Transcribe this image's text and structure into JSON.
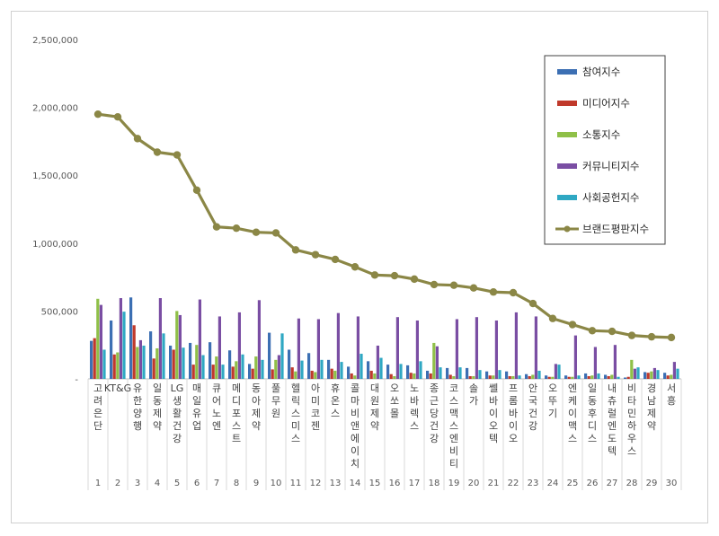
{
  "chart_data": {
    "type": "bar",
    "categories": [
      "고려은단",
      "KT&G",
      "유한양행",
      "일동제약",
      "LG생활건강",
      "매일유업",
      "큐어노엔",
      "메디포스트",
      "동아제약",
      "풀무원",
      "헬릭스미스",
      "아미코젠",
      "휴온스",
      "콜마비앤에이치",
      "대원제약",
      "오쏘몰",
      "노바렉스",
      "종근당건강",
      "코스맥스엔비티",
      "솔가",
      "쎌바이오텍",
      "프롬바이오",
      "안국건강",
      "오뚜기",
      "엔케이맥스",
      "일동후디스",
      "내츄럴엔도텍",
      "비타민하우스",
      "경남제약",
      "서흥"
    ],
    "ranks": [
      "1",
      "2",
      "3",
      "4",
      "5",
      "6",
      "7",
      "8",
      "9",
      "10",
      "11",
      "12",
      "13",
      "14",
      "15",
      "16",
      "17",
      "18",
      "19",
      "20",
      "21",
      "22",
      "23",
      "24",
      "25",
      "26",
      "27",
      "28",
      "29",
      "30"
    ],
    "series": [
      {
        "name": "참여지수",
        "type": "bar",
        "color": "#3c6fb3",
        "values": [
          280000,
          430000,
          600000,
          350000,
          245000,
          265000,
          270000,
          210000,
          110000,
          340000,
          215000,
          190000,
          140000,
          90000,
          130000,
          105000,
          100000,
          60000,
          80000,
          80000,
          55000,
          55000,
          35000,
          25000,
          25000,
          40000,
          30000,
          10000,
          50000,
          45000
        ]
      },
      {
        "name": "미디어지수",
        "type": "bar",
        "color": "#c0392b",
        "values": [
          300000,
          180000,
          395000,
          150000,
          215000,
          105000,
          105000,
          90000,
          75000,
          70000,
          85000,
          60000,
          75000,
          40000,
          60000,
          35000,
          45000,
          40000,
          30000,
          20000,
          25000,
          20000,
          20000,
          15000,
          15000,
          20000,
          20000,
          15000,
          45000,
          25000
        ]
      },
      {
        "name": "소통지수",
        "type": "bar",
        "color": "#8fc048",
        "values": [
          590000,
          195000,
          235000,
          225000,
          500000,
          250000,
          165000,
          130000,
          165000,
          140000,
          55000,
          50000,
          60000,
          25000,
          40000,
          20000,
          40000,
          265000,
          20000,
          20000,
          25000,
          20000,
          30000,
          15000,
          15000,
          25000,
          30000,
          140000,
          55000,
          30000
        ]
      },
      {
        "name": "커뮤니티지수",
        "type": "bar",
        "color": "#7a4ea3",
        "values": [
          545000,
          595000,
          285000,
          595000,
          470000,
          585000,
          460000,
          490000,
          580000,
          175000,
          445000,
          440000,
          485000,
          460000,
          245000,
          455000,
          430000,
          240000,
          440000,
          455000,
          430000,
          490000,
          460000,
          110000,
          320000,
          235000,
          250000,
          75000,
          80000,
          125000
        ]
      },
      {
        "name": "사회공헌지수",
        "type": "bar",
        "color": "#2fa8c3",
        "values": [
          215000,
          495000,
          245000,
          335000,
          230000,
          175000,
          105000,
          180000,
          140000,
          335000,
          135000,
          140000,
          125000,
          185000,
          155000,
          110000,
          130000,
          85000,
          85000,
          65000,
          65000,
          25000,
          60000,
          105000,
          25000,
          40000,
          15000,
          85000,
          65000,
          75000
        ]
      },
      {
        "name": "브랜드평판지수",
        "type": "line",
        "color": "#8b8746",
        "values": [
          1950000,
          1930000,
          1770000,
          1670000,
          1650000,
          1390000,
          1120000,
          1110000,
          1080000,
          1075000,
          950000,
          915000,
          880000,
          825000,
          765000,
          760000,
          735000,
          695000,
          690000,
          670000,
          640000,
          635000,
          555000,
          445000,
          400000,
          355000,
          350000,
          320000,
          310000,
          305000
        ]
      }
    ],
    "y_ticks": [
      "-",
      "500,000",
      "1,000,000",
      "1,500,000",
      "2,000,000",
      "2,500,000"
    ],
    "ylim": [
      0,
      2500000
    ],
    "grid": false,
    "legend_position": "top-right"
  }
}
